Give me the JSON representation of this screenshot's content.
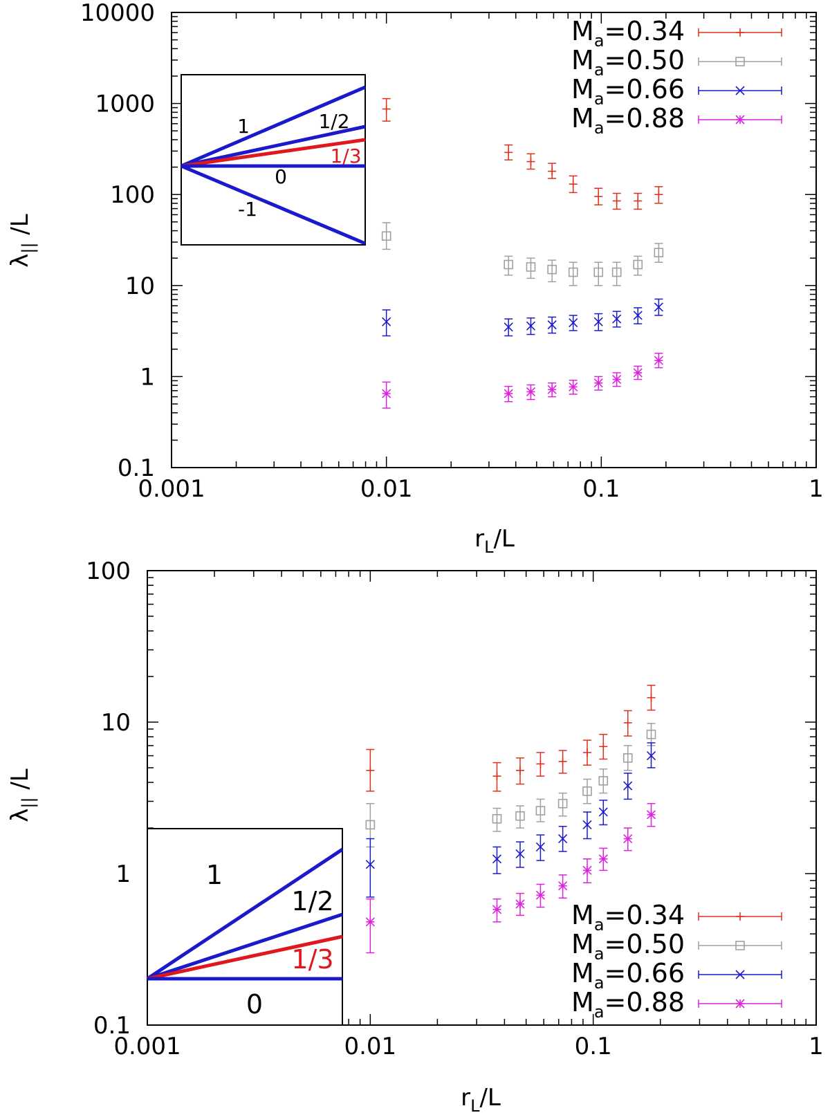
{
  "chart_data": [
    {
      "type": "scatter",
      "xscale": "log",
      "yscale": "log",
      "xlim": [
        0.001,
        1
      ],
      "ylim": [
        0.1,
        10000
      ],
      "xlabel": "r_L/L",
      "xlabel_main": "r",
      "xlabel_sub": "L",
      "xlabel_rest": "/L",
      "ylabel": "λ_|| /L",
      "ylabel_main": "λ",
      "ylabel_sub": "||",
      "ylabel_rest": " /L",
      "xticks": [
        0.001,
        0.01,
        0.1,
        1
      ],
      "xtick_labels": [
        "0.001",
        "0.01",
        "0.1",
        "1"
      ],
      "yticks": [
        0.1,
        1,
        10,
        100,
        1000,
        10000
      ],
      "ytick_labels": [
        "0.1",
        "1",
        "10",
        "100",
        "1000",
        "10000"
      ],
      "legend_position": "top-right",
      "series": [
        {
          "name": "Ma=0.34",
          "name_main": "M",
          "name_sub": "a",
          "name_rest": "=0.34",
          "color": "#e0301e",
          "marker": "plus",
          "x": [
            0.01,
            0.037,
            0.047,
            0.059,
            0.074,
            0.097,
            0.118,
            0.148,
            0.185
          ],
          "y": [
            870,
            290,
            230,
            180,
            130,
            95,
            85,
            85,
            100
          ],
          "err_lo": [
            230,
            50,
            40,
            30,
            25,
            18,
            16,
            16,
            20
          ],
          "err_hi": [
            260,
            60,
            50,
            40,
            30,
            22,
            18,
            18,
            22
          ]
        },
        {
          "name": "Ma=0.50",
          "name_main": "M",
          "name_sub": "a",
          "name_rest": "=0.50",
          "color": "#a0a0a0",
          "marker": "square",
          "x": [
            0.01,
            0.037,
            0.047,
            0.059,
            0.074,
            0.097,
            0.118,
            0.148,
            0.185
          ],
          "y": [
            35,
            17,
            16,
            15,
            14,
            14,
            14,
            17,
            23
          ],
          "err_lo": [
            10,
            4,
            4,
            4,
            4,
            4,
            4,
            4,
            5
          ],
          "err_hi": [
            14,
            4,
            4,
            4,
            4,
            4,
            4,
            4,
            6
          ]
        },
        {
          "name": "Ma=0.66",
          "name_main": "M",
          "name_sub": "a",
          "name_rest": "=0.66",
          "color": "#1a1acc",
          "marker": "cross",
          "x": [
            0.01,
            0.037,
            0.047,
            0.059,
            0.074,
            0.097,
            0.118,
            0.148,
            0.185
          ],
          "y": [
            4.0,
            3.5,
            3.6,
            3.7,
            3.9,
            4.0,
            4.3,
            4.7,
            5.8
          ],
          "err_lo": [
            1.2,
            0.7,
            0.7,
            0.7,
            0.7,
            0.8,
            0.8,
            0.9,
            1.1
          ],
          "err_hi": [
            1.4,
            0.8,
            0.8,
            0.8,
            0.8,
            0.9,
            0.9,
            1.0,
            1.3
          ]
        },
        {
          "name": "Ma=0.88",
          "name_main": "M",
          "name_sub": "a",
          "name_rest": "=0.88",
          "color": "#dd22dd",
          "marker": "star",
          "x": [
            0.01,
            0.037,
            0.047,
            0.059,
            0.074,
            0.097,
            0.118,
            0.148,
            0.185
          ],
          "y": [
            0.65,
            0.65,
            0.68,
            0.72,
            0.77,
            0.85,
            0.93,
            1.1,
            1.5
          ],
          "err_lo": [
            0.2,
            0.12,
            0.12,
            0.12,
            0.13,
            0.14,
            0.15,
            0.17,
            0.25
          ],
          "err_hi": [
            0.22,
            0.13,
            0.13,
            0.13,
            0.14,
            0.15,
            0.17,
            0.2,
            0.3
          ]
        }
      ],
      "inset": {
        "slopes": [
          "1",
          "1/2",
          "1/3",
          "0",
          "-1"
        ],
        "highlight_slope": "1/3",
        "line_color": "#1a1acc",
        "highlight_color": "#e0181e"
      }
    },
    {
      "type": "scatter",
      "xscale": "log",
      "yscale": "log",
      "xlim": [
        0.001,
        1
      ],
      "ylim": [
        0.1,
        100
      ],
      "xlabel": "r_L/L",
      "xlabel_main": "r",
      "xlabel_sub": "L",
      "xlabel_rest": "/L",
      "ylabel": "λ_|| /L",
      "ylabel_main": "λ",
      "ylabel_sub": "||",
      "ylabel_rest": " /L",
      "xticks": [
        0.001,
        0.01,
        0.1,
        1
      ],
      "xtick_labels": [
        "0.001",
        "0.01",
        "0.1",
        "1"
      ],
      "yticks": [
        0.1,
        1,
        10,
        100
      ],
      "ytick_labels": [
        "0.1",
        "1",
        "10",
        "100"
      ],
      "legend_position": "bottom-right",
      "series": [
        {
          "name": "Ma=0.34",
          "name_main": "M",
          "name_sub": "a",
          "name_rest": "=0.34",
          "color": "#e0301e",
          "marker": "plus",
          "x": [
            0.01,
            0.037,
            0.047,
            0.058,
            0.073,
            0.094,
            0.111,
            0.143,
            0.182
          ],
          "y": [
            4.8,
            4.4,
            4.8,
            5.3,
            5.5,
            6.3,
            6.9,
            9.9,
            14.5
          ],
          "err_lo": [
            1.3,
            0.9,
            0.9,
            0.9,
            0.9,
            1.1,
            1.2,
            1.8,
            2.5
          ],
          "err_hi": [
            1.8,
            1.0,
            1.0,
            1.0,
            1.0,
            1.3,
            1.4,
            2.0,
            3.0
          ]
        },
        {
          "name": "Ma=0.50",
          "name_main": "M",
          "name_sub": "a",
          "name_rest": "=0.50",
          "color": "#a0a0a0",
          "marker": "square",
          "x": [
            0.01,
            0.037,
            0.047,
            0.058,
            0.073,
            0.094,
            0.111,
            0.143,
            0.182
          ],
          "y": [
            2.1,
            2.3,
            2.4,
            2.6,
            2.9,
            3.5,
            4.1,
            5.8,
            8.3
          ],
          "err_lo": [
            0.6,
            0.4,
            0.4,
            0.4,
            0.5,
            0.6,
            0.7,
            1.0,
            1.3
          ],
          "err_hi": [
            0.8,
            0.4,
            0.4,
            0.5,
            0.5,
            0.7,
            0.8,
            1.2,
            1.5
          ]
        },
        {
          "name": "Ma=0.66",
          "name_main": "M",
          "name_sub": "a",
          "name_rest": "=0.66",
          "color": "#1a1acc",
          "marker": "cross",
          "x": [
            0.01,
            0.037,
            0.047,
            0.058,
            0.073,
            0.094,
            0.111,
            0.143,
            0.182
          ],
          "y": [
            1.15,
            1.25,
            1.35,
            1.5,
            1.7,
            2.1,
            2.55,
            3.8,
            6.0
          ],
          "err_lo": [
            0.45,
            0.25,
            0.25,
            0.28,
            0.3,
            0.4,
            0.45,
            0.7,
            1.0
          ],
          "err_hi": [
            0.55,
            0.25,
            0.27,
            0.3,
            0.35,
            0.45,
            0.5,
            0.8,
            1.3
          ]
        },
        {
          "name": "Ma=0.88",
          "name_main": "M",
          "name_sub": "a",
          "name_rest": "=0.88",
          "color": "#dd22dd",
          "marker": "star",
          "x": [
            0.01,
            0.037,
            0.047,
            0.058,
            0.073,
            0.094,
            0.111,
            0.143,
            0.182
          ],
          "y": [
            0.48,
            0.58,
            0.63,
            0.72,
            0.83,
            1.05,
            1.25,
            1.7,
            2.45
          ],
          "err_lo": [
            0.18,
            0.1,
            0.1,
            0.12,
            0.14,
            0.18,
            0.2,
            0.28,
            0.4
          ],
          "err_hi": [
            0.2,
            0.1,
            0.11,
            0.13,
            0.15,
            0.2,
            0.22,
            0.3,
            0.45
          ]
        }
      ],
      "inset": {
        "slopes": [
          "1",
          "1/2",
          "1/3",
          "0"
        ],
        "highlight_slope": "1/3",
        "line_color": "#1a1acc",
        "highlight_color": "#e0181e"
      }
    }
  ]
}
